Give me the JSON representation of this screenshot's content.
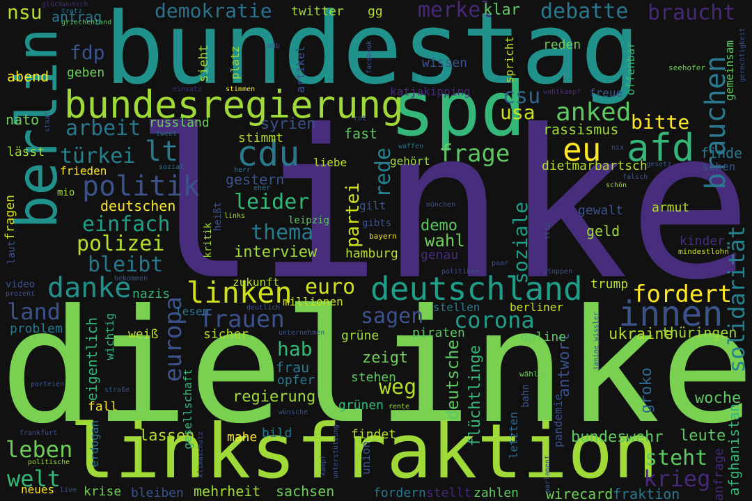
{
  "words": [
    {
      "text": "dielinke",
      "color": "#7ad151"
    },
    {
      "text": "linke",
      "color": "#472d7b"
    },
    {
      "text": "bundestag",
      "color": "#21918c"
    },
    {
      "text": "linksfraktion",
      "color": "#a0da39"
    },
    {
      "text": "spd",
      "color": "#35b779"
    },
    {
      "text": "berlin",
      "color": "#21918c"
    },
    {
      "text": "bundesregierung",
      "color": "#a0da39"
    },
    {
      "text": "deutschland",
      "color": "#1f9e89"
    },
    {
      "text": "cdu",
      "color": "#2a788e"
    },
    {
      "text": "afd",
      "color": "#35b779"
    },
    {
      "text": "eu",
      "color": "#fde725"
    },
    {
      "text": "innen",
      "color": "#3b528b"
    },
    {
      "text": "linken",
      "color": "#d0e11c"
    },
    {
      "text": "politik",
      "color": "#3b528b"
    },
    {
      "text": "danke",
      "color": "#21918c"
    },
    {
      "text": "brauchen",
      "color": "#2a788e"
    },
    {
      "text": "solidarität",
      "color": "#26828e"
    },
    {
      "text": "lt",
      "color": "#2a788e"
    },
    {
      "text": "frage",
      "color": "#5ec962"
    },
    {
      "text": "anked",
      "color": "#5ec962"
    },
    {
      "text": "csu",
      "color": "#31688e"
    },
    {
      "text": "usa",
      "color": "#d0e11c"
    },
    {
      "text": "arbeit",
      "color": "#2a788e"
    },
    {
      "text": "türkei",
      "color": "#26828e"
    },
    {
      "text": "fdp",
      "color": "#3b528b"
    },
    {
      "text": "demokratie",
      "color": "#2c728e"
    },
    {
      "text": "merkel",
      "color": "#482878"
    },
    {
      "text": "debatte",
      "color": "#2a788e"
    },
    {
      "text": "braucht",
      "color": "#482878"
    },
    {
      "text": "nsu",
      "color": "#b5de2b"
    },
    {
      "text": "antrag",
      "color": "#2a788e"
    },
    {
      "text": "twitter",
      "color": "#a0da39"
    },
    {
      "text": "gg",
      "color": "#b5de2b"
    },
    {
      "text": "klar",
      "color": "#5ec962"
    },
    {
      "text": "bitte",
      "color": "#fde725"
    },
    {
      "text": "rassismus",
      "color": "#a0da39"
    },
    {
      "text": "russland",
      "color": "#6ece58"
    },
    {
      "text": "syrien",
      "color": "#3b528b"
    },
    {
      "text": "stimmt",
      "color": "#b5de2b"
    },
    {
      "text": "fast",
      "color": "#5ec962"
    },
    {
      "text": "europa",
      "color": "#3b528b"
    },
    {
      "text": "frauen",
      "color": "#3b528b"
    },
    {
      "text": "sagen",
      "color": "#3b528b"
    },
    {
      "text": "corona",
      "color": "#1f9e89"
    },
    {
      "text": "euro",
      "color": "#d0e11c"
    },
    {
      "text": "fordert",
      "color": "#fde725"
    },
    {
      "text": "land",
      "color": "#3b528b"
    },
    {
      "text": "leben",
      "color": "#6ece58"
    },
    {
      "text": "welt",
      "color": "#35b779"
    },
    {
      "text": "krieg",
      "color": "#482878"
    },
    {
      "text": "steht",
      "color": "#5ec962"
    },
    {
      "text": "weg",
      "color": "#b5de2b"
    },
    {
      "text": "polizei",
      "color": "#b5de2b"
    },
    {
      "text": "einfach",
      "color": "#1f9e89"
    },
    {
      "text": "bleibt",
      "color": "#2a788e"
    },
    {
      "text": "leider",
      "color": "#35b779"
    },
    {
      "text": "thema",
      "color": "#2a788e"
    },
    {
      "text": "partei",
      "color": "#d0e11c"
    },
    {
      "text": "rede",
      "color": "#26828e"
    },
    {
      "text": "soziale",
      "color": "#1f9e89"
    },
    {
      "text": "wahl",
      "color": "#6ece58"
    },
    {
      "text": "demo",
      "color": "#5ec962"
    },
    {
      "text": "hab",
      "color": "#35b779"
    },
    {
      "text": "zeigt",
      "color": "#6ece58"
    },
    {
      "text": "deutsche",
      "color": "#5ec962"
    },
    {
      "text": "flüchtlinge",
      "color": "#35b779"
    },
    {
      "text": "regierung",
      "color": "#a0da39"
    },
    {
      "text": "antwort",
      "color": "#3b528b"
    },
    {
      "text": "groko",
      "color": "#31688e"
    },
    {
      "text": "woche",
      "color": "#5ec962"
    },
    {
      "text": "ukraine",
      "color": "#b5de2b"
    },
    {
      "text": "thüringen",
      "color": "#a0da39"
    },
    {
      "text": "leute",
      "color": "#5ec962"
    },
    {
      "text": "bundeswehr",
      "color": "#5ec962"
    },
    {
      "text": "wirecard",
      "color": "#6ece58"
    },
    {
      "text": "fraktion",
      "color": "#2a788e"
    },
    {
      "text": "afghanistan",
      "color": "#35b779"
    },
    {
      "text": "anfrage",
      "color": "#482878"
    },
    {
      "text": "zahlen",
      "color": "#5ec962"
    },
    {
      "text": "stellt",
      "color": "#482878"
    },
    {
      "text": "fordern",
      "color": "#2a788e"
    },
    {
      "text": "sachsen",
      "color": "#6ece58"
    },
    {
      "text": "mehrheit",
      "color": "#a0da39"
    },
    {
      "text": "bleiben",
      "color": "#3b528b"
    },
    {
      "text": "krise",
      "color": "#6ece58"
    },
    {
      "text": "neues",
      "color": "#fde725"
    },
    {
      "text": "live",
      "color": "#3b528b"
    },
    {
      "text": "lassen",
      "color": "#b5de2b"
    },
    {
      "text": "mahe",
      "color": "#fde725"
    },
    {
      "text": "bild",
      "color": "#2a788e"
    },
    {
      "text": "findet",
      "color": "#b5de2b"
    },
    {
      "text": "grünen",
      "color": "#35b779"
    },
    {
      "text": "stehen",
      "color": "#5ec962"
    },
    {
      "text": "opfer",
      "color": "#2a788e"
    },
    {
      "text": "frau",
      "color": "#2a788e"
    },
    {
      "text": "grüne",
      "color": "#a0da39"
    },
    {
      "text": "piraten",
      "color": "#5ec962"
    },
    {
      "text": "online",
      "color": "#5ec962"
    },
    {
      "text": "fall",
      "color": "#fde725"
    },
    {
      "text": "sicher",
      "color": "#b5de2b"
    },
    {
      "text": "weiß",
      "color": "#b5de2b"
    },
    {
      "text": "problem",
      "color": "#2a788e"
    },
    {
      "text": "nazis",
      "color": "#35b779"
    },
    {
      "text": "lesen",
      "color": "#2c728e"
    },
    {
      "text": "millionen",
      "color": "#d0e11c"
    },
    {
      "text": "zukunft",
      "color": "#b5de2b"
    },
    {
      "text": "trump",
      "color": "#b5de2b"
    },
    {
      "text": "interview",
      "color": "#a0da39"
    },
    {
      "text": "hamburg",
      "color": "#b5de2b"
    },
    {
      "text": "genau",
      "color": "#472d7b"
    },
    {
      "text": "kinder",
      "color": "#472d7b"
    },
    {
      "text": "geld",
      "color": "#a0da39"
    },
    {
      "text": "gewalt",
      "color": "#3b528b"
    },
    {
      "text": "armut",
      "color": "#b5de2b"
    },
    {
      "text": "dietmarbartsch",
      "color": "#b5de2b"
    },
    {
      "text": "finde",
      "color": "#2a788e"
    },
    {
      "text": "sehen",
      "color": "#3b528b"
    },
    {
      "text": "gestern",
      "color": "#3b528b"
    },
    {
      "text": "deutschen",
      "color": "#fde725"
    },
    {
      "text": "frieden",
      "color": "#fde725"
    },
    {
      "text": "fragen",
      "color": "#d0e11c"
    },
    {
      "text": "lässt",
      "color": "#a0da39"
    },
    {
      "text": "nato",
      "color": "#6ece58"
    },
    {
      "text": "abend",
      "color": "#fde725"
    },
    {
      "text": "geben",
      "color": "#6ece58"
    },
    {
      "text": "sieht",
      "color": "#a0da39"
    },
    {
      "text": "platz",
      "color": "#a0da39"
    },
    {
      "text": "artikel",
      "color": "#3b528b"
    },
    {
      "text": "wissen",
      "color": "#3b528b"
    },
    {
      "text": "reden",
      "color": "#6ece58"
    },
    {
      "text": "freue",
      "color": "#3b528b"
    },
    {
      "text": "offenbar",
      "color": "#35b779"
    },
    {
      "text": "gemeinsam",
      "color": "#5ec962"
    },
    {
      "text": "spricht",
      "color": "#b5de2b"
    },
    {
      "text": "katjakipping",
      "color": "#482878"
    },
    {
      "text": "seehofer",
      "color": "#6ece58"
    },
    {
      "text": "gehört",
      "color": "#a0da39"
    },
    {
      "text": "liebe",
      "color": "#b5de2b"
    },
    {
      "text": "gilt",
      "color": "#3b528b"
    },
    {
      "text": "gibts",
      "color": "#3b528b"
    },
    {
      "text": "leipzig",
      "color": "#5ec962"
    },
    {
      "text": "kritik",
      "color": "#a0da39"
    },
    {
      "text": "heißt",
      "color": "#3b528b"
    },
    {
      "text": "laut",
      "color": "#3b528b"
    },
    {
      "text": "mio",
      "color": "#a0da39"
    },
    {
      "text": "video",
      "color": "#3b528b"
    },
    {
      "text": "eigentlich",
      "color": "#35b779"
    },
    {
      "text": "wichtig",
      "color": "#35b779"
    },
    {
      "text": "gesellschaft",
      "color": "#35b779"
    },
    {
      "text": "erdogan",
      "color": "#2a788e"
    },
    {
      "text": "letzten",
      "color": "#31688e"
    },
    {
      "text": "pandemie",
      "color": "#3b528b"
    },
    {
      "text": "union",
      "color": "#3b528b"
    },
    {
      "text": "berliner",
      "color": "#d0e11c"
    },
    {
      "text": "stellen",
      "color": "#2a788e"
    },
    {
      "text": "bahn",
      "color": "#3b528b"
    },
    {
      "text": "wählen",
      "color": "#6ece58"
    },
    {
      "text": "glückwunsch",
      "color": "#472d7b"
    },
    {
      "text": "trotz",
      "color": "#2c728e"
    },
    {
      "text": "griechenland",
      "color": "#5ec962"
    },
    {
      "text": "mdb",
      "color": "#3b528b"
    },
    {
      "text": "facebook",
      "color": "#3b528b"
    },
    {
      "text": "gerechtigkeit",
      "color": "#3b528b"
    },
    {
      "text": "einsatz",
      "color": "#472d7b"
    },
    {
      "text": "stimmen",
      "color": "#fde725"
    },
    {
      "text": "wahlkampf",
      "color": "#472d7b"
    },
    {
      "text": "staat",
      "color": "#3b528b"
    },
    {
      "text": "tweet",
      "color": "#2c728e"
    },
    {
      "text": "rot",
      "color": "#3b528b"
    },
    {
      "text": "waffen",
      "color": "#2c728e"
    },
    {
      "text": "nix",
      "color": "#3b528b"
    },
    {
      "text": "herr",
      "color": "#2c728e"
    },
    {
      "text": "sozial",
      "color": "#2c728e"
    },
    {
      "text": "gesetz",
      "color": "#3b528b"
    },
    {
      "text": "eher",
      "color": "#2c728e"
    },
    {
      "text": "falsch",
      "color": "#3b528b"
    },
    {
      "text": "schön",
      "color": "#a0da39"
    },
    {
      "text": "münchen",
      "color": "#3b528b"
    },
    {
      "text": "links",
      "color": "#a0da39"
    },
    {
      "text": "bayern",
      "color": "#fde725"
    },
    {
      "text": "ttip",
      "color": "#3b528b"
    },
    {
      "text": "mindestlohn",
      "color": "#d0e11c"
    },
    {
      "text": "politiker",
      "color": "#3b528b"
    },
    {
      "text": "paar",
      "color": "#3b528b"
    },
    {
      "text": "stoppen",
      "color": "#3b528b"
    },
    {
      "text": "bekommen",
      "color": "#3b528b"
    },
    {
      "text": "prozent",
      "color": "#3b528b"
    },
    {
      "text": "deutlich",
      "color": "#3b528b"
    },
    {
      "text": "unternehmen",
      "color": "#3b528b"
    },
    {
      "text": "janine_wissler",
      "color": "#3b528b"
    },
    {
      "text": "parteien",
      "color": "#3b528b"
    },
    {
      "text": "straße",
      "color": "#3b528b"
    },
    {
      "text": "wünsche",
      "color": "#3b528b"
    },
    {
      "text": "rente",
      "color": "#a0da39"
    },
    {
      "text": "frankfurt",
      "color": "#3b528b"
    },
    {
      "text": "politische",
      "color": "#a0da39"
    },
    {
      "text": "klimaschutz",
      "color": "#3b528b"
    },
    {
      "text": "unterstützung",
      "color": "#3b528b"
    },
    {
      "text": "kampf",
      "color": "#3b528b"
    },
    {
      "text": "parlament",
      "color": "#3b528b"
    }
  ]
}
